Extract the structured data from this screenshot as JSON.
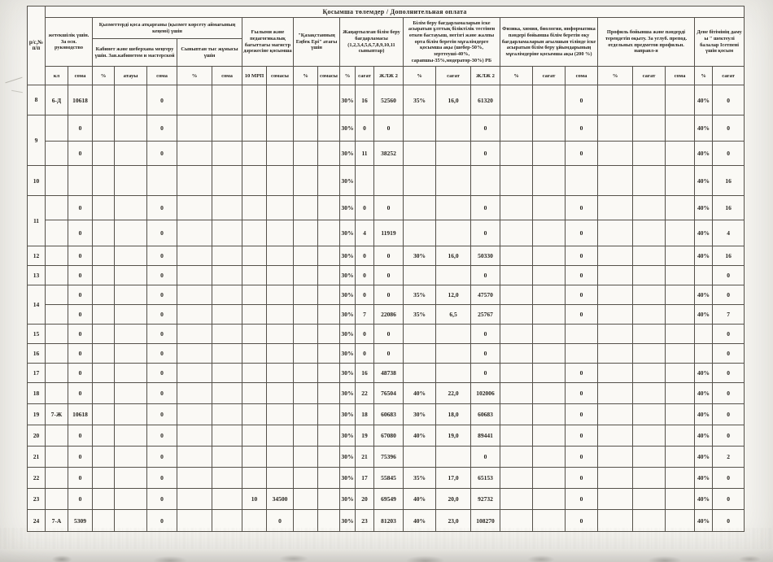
{
  "document": {
    "banner": "Қосымша төлемдер      /      Дополнительная оплата"
  },
  "header": {
    "rs": "р/с,№ п/п",
    "groups": {
      "zhetekshilik": "жетекшілік үшін. За осн. руководство",
      "kyzmetter": "Қызметтерді қоса атқарғаны (қызмет көрсету аймағының кеңеюі) үшін",
      "kabinet": "Кабинет және шеберхана меңгеру үшін. Зав.кабинетом и мастерской",
      "synyptan": "Сыныптан тыс жұмысы үшін",
      "magistr": "Ғылыми және педагогикалық бағыттағы магистр дәрежесіне қосымша",
      "enbek_eri": "\"Қазақстанның Еңбек Ері\" атағы үшін",
      "zhanartylgan": "Жаңартылған білім беру бағдарламасы (1,2,3,4,5,6,7,8,9,10,11 сыныптар)",
      "nattest": "Білім беру бағдарламаларын іске асыратын ұлттық біліктілік тестінен өткен бастауыш, негізгі және жалпы орта білім беретін мұғалімдерге  қосымша ақы (шебер-50%, зерттеуші-40%, сарапшы-35%,модератор-30%) РБ",
      "fizika": "Физика, химия, биология, информатика пәндері бойынша  білім беретін оқу бағдарламаларын ағылшын тілінде іске асыратын білім беру ұйымдарының мұғалімдеріне  қосымша ақы (200 %)",
      "profil": "Профиль бойынша және пәндерді тереңдетіп оқыту. За углуб. препод. отдельных предметов профильн. направл-я",
      "dene": "Дене бітімінің даму ы \" шектеулі балалар Ісетпені үшін қосым"
    },
    "subcolumns": [
      "кл",
      "сома",
      "%",
      "атауы",
      "сома",
      "%",
      "сома",
      "10 МРП",
      "сомасы",
      "%",
      "сомасы",
      "%",
      "сағат",
      "ЖЛЖ 2",
      "%",
      "сағат",
      "ЖЛЖ 2",
      "%",
      "сағат",
      "сома",
      "%",
      "сағат",
      "сома",
      "%",
      "сағат"
    ]
  },
  "table": {
    "rows": [
      {
        "no": "8",
        "cells": [
          [
            "6-Д",
            "10618",
            "",
            "",
            "0",
            "",
            "",
            "",
            "",
            "",
            "",
            "30%",
            "16",
            "52560",
            "35%",
            "16,0",
            "61320",
            "",
            "",
            "0",
            "",
            "",
            "",
            "40%",
            "0"
          ]
        ]
      },
      {
        "no": "9",
        "cells": [
          [
            "",
            "0",
            "",
            "",
            "0",
            "",
            "",
            "",
            "",
            "",
            "",
            "30%",
            "0",
            "0",
            "",
            "",
            "0",
            "",
            "",
            "0",
            "",
            "",
            "",
            "40%",
            "0"
          ],
          [
            "",
            "0",
            "",
            "",
            "0",
            "",
            "",
            "",
            "",
            "",
            "",
            "30%",
            "11",
            "38252",
            "",
            "",
            "0",
            "",
            "",
            "0",
            "",
            "",
            "",
            "40%",
            "0"
          ]
        ]
      },
      {
        "no": "10",
        "cells": [
          [
            "",
            "",
            "",
            "",
            "",
            "",
            "",
            "",
            "",
            "",
            "",
            "30%",
            "",
            "",
            "",
            "",
            "",
            "",
            "",
            "",
            "",
            "",
            "",
            "40%",
            "16"
          ]
        ]
      },
      {
        "no": "11",
        "cells": [
          [
            "",
            "0",
            "",
            "",
            "0",
            "",
            "",
            "",
            "",
            "",
            "",
            "30%",
            "0",
            "0",
            "",
            "",
            "0",
            "",
            "",
            "0",
            "",
            "",
            "",
            "40%",
            "16"
          ],
          [
            "",
            "0",
            "",
            "",
            "0",
            "",
            "",
            "",
            "",
            "",
            "",
            "30%",
            "4",
            "11919",
            "",
            "",
            "0",
            "",
            "",
            "0",
            "",
            "",
            "",
            "40%",
            "4"
          ]
        ]
      },
      {
        "no": "12",
        "cells": [
          [
            "",
            "0",
            "",
            "",
            "0",
            "",
            "",
            "",
            "",
            "",
            "",
            "30%",
            "0",
            "0",
            "30%",
            "16,0",
            "50330",
            "",
            "",
            "0",
            "",
            "",
            "",
            "40%",
            "16"
          ]
        ]
      },
      {
        "no": "13",
        "cells": [
          [
            "",
            "0",
            "",
            "",
            "0",
            "",
            "",
            "",
            "",
            "",
            "",
            "30%",
            "0",
            "0",
            "",
            "",
            "0",
            "",
            "",
            "0",
            "",
            "",
            "",
            "",
            "0"
          ]
        ]
      },
      {
        "no": "14",
        "cells": [
          [
            "",
            "0",
            "",
            "",
            "0",
            "",
            "",
            "",
            "",
            "",
            "",
            "30%",
            "0",
            "0",
            "35%",
            "12,0",
            "47570",
            "",
            "",
            "0",
            "",
            "",
            "",
            "40%",
            "0"
          ],
          [
            "",
            "0",
            "",
            "",
            "0",
            "",
            "",
            "",
            "",
            "",
            "",
            "30%",
            "7",
            "22086",
            "35%",
            "6,5",
            "25767",
            "",
            "",
            "0",
            "",
            "",
            "",
            "40%",
            "7"
          ]
        ]
      },
      {
        "no": "15",
        "cells": [
          [
            "",
            "0",
            "",
            "",
            "0",
            "",
            "",
            "",
            "",
            "",
            "",
            "30%",
            "0",
            "0",
            "",
            "",
            "0",
            "",
            "",
            "",
            "",
            "",
            "",
            "",
            "0"
          ]
        ]
      },
      {
        "no": "16",
        "cells": [
          [
            "",
            "0",
            "",
            "",
            "0",
            "",
            "",
            "",
            "",
            "",
            "",
            "30%",
            "0",
            "0",
            "",
            "",
            "0",
            "",
            "",
            "",
            "",
            "",
            "",
            "",
            "0"
          ]
        ]
      },
      {
        "no": "17",
        "cells": [
          [
            "",
            "0",
            "",
            "",
            "0",
            "",
            "",
            "",
            "",
            "",
            "",
            "30%",
            "16",
            "48738",
            "",
            "",
            "0",
            "",
            "",
            "0",
            "",
            "",
            "",
            "40%",
            "0"
          ]
        ]
      },
      {
        "no": "18",
        "cells": [
          [
            "",
            "0",
            "",
            "",
            "0",
            "",
            "",
            "",
            "",
            "",
            "",
            "30%",
            "22",
            "76504",
            "40%",
            "22,0",
            "102006",
            "",
            "",
            "0",
            "",
            "",
            "",
            "40%",
            "0"
          ]
        ]
      },
      {
        "no": "19",
        "cells": [
          [
            "7-Ж",
            "10618",
            "",
            "",
            "0",
            "",
            "",
            "",
            "",
            "",
            "",
            "30%",
            "18",
            "60683",
            "30%",
            "18,0",
            "60683",
            "",
            "",
            "0",
            "",
            "",
            "",
            "40%",
            "0"
          ]
        ]
      },
      {
        "no": "20",
        "cells": [
          [
            "",
            "0",
            "",
            "",
            "0",
            "",
            "",
            "",
            "",
            "",
            "",
            "30%",
            "19",
            "67080",
            "40%",
            "19,0",
            "89441",
            "",
            "",
            "0",
            "",
            "",
            "",
            "40%",
            "0"
          ]
        ]
      },
      {
        "no": "21",
        "cells": [
          [
            "",
            "0",
            "",
            "",
            "0",
            "",
            "",
            "",
            "",
            "",
            "",
            "30%",
            "21",
            "75396",
            "",
            "",
            "0",
            "",
            "",
            "0",
            "",
            "",
            "",
            "40%",
            "2"
          ]
        ]
      },
      {
        "no": "22",
        "cells": [
          [
            "",
            "0",
            "",
            "",
            "0",
            "",
            "",
            "",
            "",
            "",
            "",
            "30%",
            "17",
            "55845",
            "35%",
            "17,0",
            "65153",
            "",
            "",
            "0",
            "",
            "",
            "",
            "40%",
            "0"
          ]
        ]
      },
      {
        "no": "23",
        "cells": [
          [
            "",
            "0",
            "",
            "",
            "0",
            "",
            "",
            "10",
            "34500",
            "",
            "",
            "30%",
            "20",
            "69549",
            "40%",
            "20,0",
            "92732",
            "",
            "",
            "0",
            "",
            "",
            "",
            "40%",
            "0"
          ]
        ]
      },
      {
        "no": "24",
        "cells": [
          [
            "7-А",
            "5309",
            "",
            "",
            "0",
            "",
            "",
            "",
            "0",
            "",
            "",
            "30%",
            "23",
            "81203",
            "40%",
            "23,0",
            "108270",
            "",
            "",
            "0",
            "",
            "",
            "",
            "40%",
            "0"
          ]
        ]
      }
    ]
  }
}
